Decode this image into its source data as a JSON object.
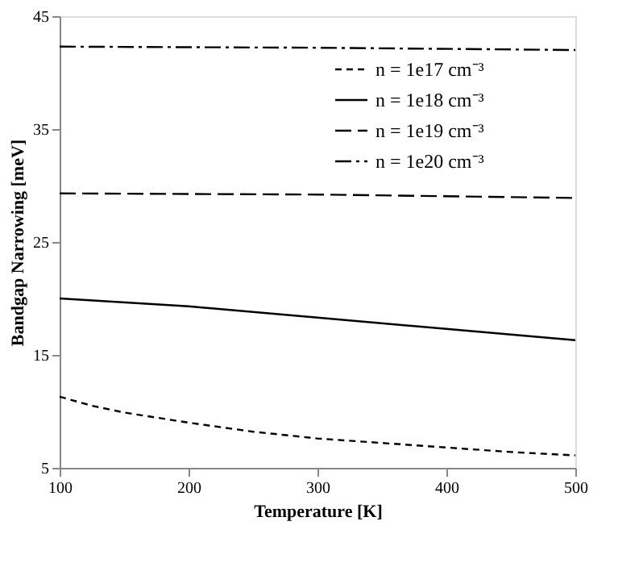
{
  "chart_data": {
    "type": "line",
    "xlabel": "Temperature [K]",
    "ylabel": "Bandgap Narrowing [meV]",
    "xlim": [
      100,
      500
    ],
    "ylim": [
      5,
      45
    ],
    "xticks": [
      100,
      200,
      300,
      400,
      500
    ],
    "yticks": [
      5,
      15,
      25,
      35,
      45
    ],
    "legend": "top right",
    "grid": false,
    "marker": "none",
    "series": [
      {
        "name": "n = 1e17 cm⁻³",
        "color": "#000000",
        "line_style": "dashed",
        "x": [
          100,
          125,
          150,
          200,
          250,
          300,
          350,
          400,
          450,
          500
        ],
        "values": [
          11.3,
          10.5,
          9.9,
          9.0,
          8.2,
          7.6,
          7.2,
          6.8,
          6.4,
          6.1
        ]
      },
      {
        "name": "n = 1e18 cm⁻³",
        "color": "#000000",
        "line_style": "solid",
        "x": [
          100,
          200,
          300,
          400,
          500
        ],
        "values": [
          20.0,
          19.3,
          18.3,
          17.3,
          16.3
        ]
      },
      {
        "name": "n = 1e19 cm⁻³",
        "color": "#000000",
        "line_style": "longdash",
        "x": [
          100,
          300,
          500
        ],
        "values": [
          29.3,
          29.2,
          28.9
        ]
      },
      {
        "name": "n = 1e20 cm⁻³",
        "color": "#000000",
        "line_style": "dashdot",
        "x": [
          100,
          300,
          500
        ],
        "values": [
          42.3,
          42.2,
          42.0
        ]
      }
    ]
  }
}
